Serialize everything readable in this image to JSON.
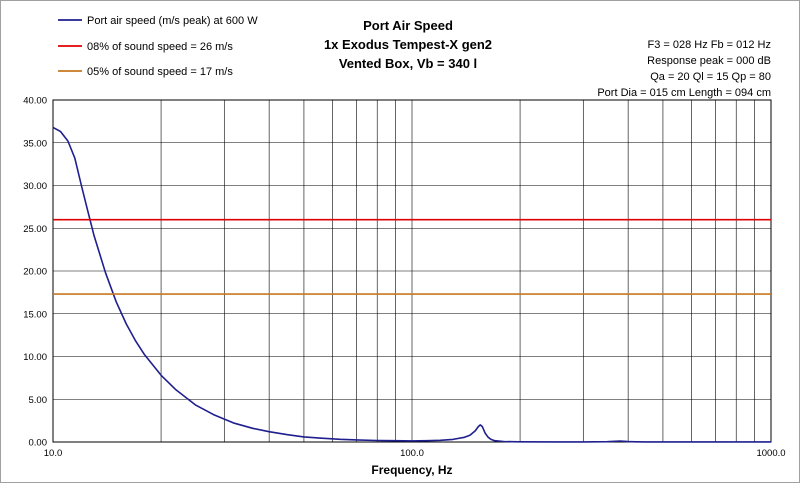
{
  "legend": [
    {
      "label": "Port air speed (m/s peak) at 600 W",
      "color": "#1f1f8f"
    },
    {
      "label": "08% of sound speed = 26 m/s",
      "color": "#e00000"
    },
    {
      "label": "05% of sound speed = 17 m/s",
      "color": "#c87820"
    }
  ],
  "title_lines": [
    "Port Air Speed",
    "1x Exodus Tempest-X gen2",
    "Vented Box, Vb = 340 l"
  ],
  "info_lines": [
    "F3 = 028 Hz  Fb = 012 Hz",
    "Response peak = 000 dB",
    "Qa = 20  Ql = 15  Qp = 80",
    "Port Dia = 015 cm  Length = 094 cm"
  ],
  "chart_data": {
    "type": "line",
    "xlabel": "Frequency, Hz",
    "xscale": "log",
    "xlim": [
      10,
      1000
    ],
    "ylim": [
      0,
      40
    ],
    "grid": true,
    "x_tick_labels": [
      "10.0",
      "100.0",
      "1000.0"
    ],
    "y_tick_labels": [
      "0.00",
      "5.00",
      "10.00",
      "15.00",
      "20.00",
      "25.00",
      "30.00",
      "35.00",
      "40.00"
    ],
    "series": [
      {
        "name": "Port air speed (m/s peak) at 600 W",
        "color": "#1f1f8f",
        "x": [
          10,
          10.5,
          11,
          11.5,
          12,
          12.5,
          13,
          14,
          15,
          16,
          17,
          18,
          20,
          22,
          25,
          28,
          32,
          36,
          40,
          45,
          50,
          56,
          63,
          70,
          80,
          90,
          100,
          110,
          120,
          130,
          140,
          145,
          150,
          153,
          155,
          157,
          160,
          163,
          166,
          170,
          180,
          190,
          200,
          250,
          300,
          350,
          380,
          400,
          420,
          450,
          500,
          600,
          700,
          800,
          900,
          1000
        ],
        "y": [
          36.8,
          36.3,
          35.2,
          33.2,
          30.0,
          27.0,
          24.2,
          19.8,
          16.4,
          13.8,
          11.8,
          10.2,
          7.8,
          6.1,
          4.3,
          3.2,
          2.2,
          1.6,
          1.2,
          0.85,
          0.6,
          0.45,
          0.32,
          0.25,
          0.18,
          0.15,
          0.13,
          0.15,
          0.2,
          0.3,
          0.55,
          0.8,
          1.3,
          1.8,
          2.0,
          1.8,
          1.0,
          0.55,
          0.3,
          0.15,
          0.06,
          0.03,
          0.02,
          0.01,
          0.01,
          0.03,
          0.12,
          0.05,
          0.02,
          0.01,
          0.01,
          0.01,
          0.01,
          0.01,
          0.01,
          0.01
        ]
      },
      {
        "name": "08% of sound speed = 26 m/s",
        "color": "#e00000",
        "x": [
          10,
          1000
        ],
        "y": [
          26,
          26
        ]
      },
      {
        "name": "05% of sound speed = 17 m/s",
        "color": "#c87820",
        "x": [
          10,
          1000
        ],
        "y": [
          17.3,
          17.3
        ]
      }
    ]
  }
}
